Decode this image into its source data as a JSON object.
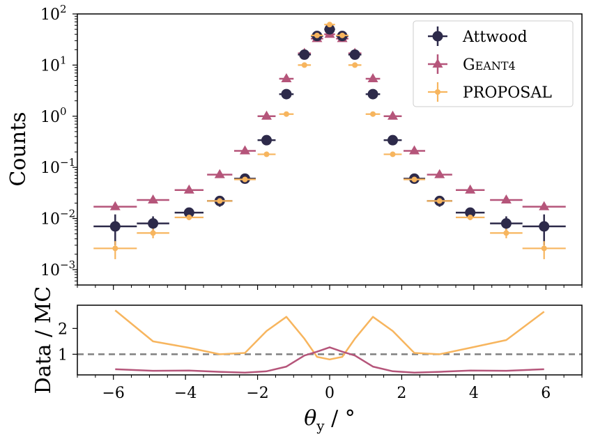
{
  "chart_data": [
    {
      "type": "scatter",
      "panel": "main",
      "ylabel": "Counts",
      "yscale": "log",
      "xlim": [
        -7,
        7
      ],
      "ylim": [
        0.0005,
        100
      ],
      "y_ticks": [
        {
          "value": 0.001,
          "base": "10",
          "exp": "−3"
        },
        {
          "value": 0.01,
          "base": "10",
          "exp": "−2"
        },
        {
          "value": 0.1,
          "base": "10",
          "exp": "−1"
        },
        {
          "value": 1,
          "base": "10",
          "exp": "0"
        },
        {
          "value": 10,
          "base": "10",
          "exp": "1"
        },
        {
          "value": 100,
          "base": "10",
          "exp": "2"
        }
      ],
      "legend_position": "top-right",
      "series": [
        {
          "name": "Attwood",
          "color": "#2d2a4a",
          "marker": "circle",
          "x": [
            -5.95,
            -4.9,
            -3.9,
            -3.05,
            -2.35,
            -1.75,
            -1.2,
            -0.7,
            -0.35,
            0,
            0.35,
            0.7,
            1.2,
            1.75,
            2.35,
            3.05,
            3.9,
            4.9,
            5.95
          ],
          "xerr": [
            0.6,
            0.45,
            0.4,
            0.35,
            0.3,
            0.25,
            0.2,
            0.18,
            0.17,
            0.15,
            0.17,
            0.18,
            0.2,
            0.25,
            0.3,
            0.35,
            0.4,
            0.45,
            0.6
          ],
          "y": [
            0.007,
            0.008,
            0.013,
            0.022,
            0.06,
            0.34,
            2.7,
            16,
            37,
            50,
            37,
            16,
            2.7,
            0.34,
            0.06,
            0.022,
            0.013,
            0.008,
            0.007
          ],
          "ylo": [
            0.003,
            0.005,
            0.011,
            0.017,
            0.055,
            0.32,
            2.6,
            15,
            35,
            43,
            35,
            15,
            2.6,
            0.32,
            0.055,
            0.017,
            0.011,
            0.005,
            0.003
          ],
          "yhi": [
            0.012,
            0.011,
            0.015,
            0.027,
            0.066,
            0.36,
            2.8,
            17,
            39,
            58,
            39,
            17,
            2.8,
            0.36,
            0.066,
            0.027,
            0.015,
            0.011,
            0.012
          ]
        },
        {
          "name": "Geant4",
          "color": "#b5557a",
          "marker": "triangle",
          "x": [
            -5.95,
            -4.9,
            -3.9,
            -3.05,
            -2.35,
            -1.75,
            -1.2,
            -0.7,
            -0.35,
            0,
            0.35,
            0.7,
            1.2,
            1.75,
            2.35,
            3.05,
            3.9,
            4.9,
            5.95
          ],
          "xerr": [
            0.6,
            0.45,
            0.4,
            0.35,
            0.3,
            0.25,
            0.2,
            0.18,
            0.17,
            0.15,
            0.17,
            0.18,
            0.2,
            0.25,
            0.3,
            0.35,
            0.4,
            0.45,
            0.6
          ],
          "y": [
            0.017,
            0.023,
            0.036,
            0.072,
            0.21,
            1.0,
            5.4,
            17,
            33,
            40,
            33,
            17,
            5.4,
            1.0,
            0.21,
            0.072,
            0.036,
            0.023,
            0.017
          ]
        },
        {
          "name": "PROPOSAL",
          "color": "#f7b55e",
          "marker": "small-circle",
          "x": [
            -5.95,
            -4.9,
            -3.9,
            -3.05,
            -2.35,
            -1.75,
            -1.2,
            -0.7,
            -0.35,
            0,
            0.35,
            0.7,
            1.2,
            1.75,
            2.35,
            3.05,
            3.9,
            4.9,
            5.95
          ],
          "xerr": [
            0.6,
            0.45,
            0.4,
            0.35,
            0.3,
            0.25,
            0.2,
            0.18,
            0.17,
            0.15,
            0.17,
            0.18,
            0.2,
            0.25,
            0.3,
            0.35,
            0.4,
            0.45,
            0.6
          ],
          "y": [
            0.0026,
            0.0052,
            0.0105,
            0.022,
            0.058,
            0.18,
            1.1,
            10,
            38,
            62,
            38,
            10,
            1.1,
            0.18,
            0.058,
            0.022,
            0.0105,
            0.0052,
            0.0026
          ],
          "ylo": [
            0.0016,
            0.0041,
            0.0093,
            0.02,
            0.055,
            0.175,
            1.07,
            9.8,
            37,
            60,
            37,
            9.8,
            1.07,
            0.175,
            0.055,
            0.02,
            0.0093,
            0.0041,
            0.0016
          ],
          "yhi": [
            0.0036,
            0.0063,
            0.0117,
            0.024,
            0.061,
            0.185,
            1.13,
            10.2,
            39,
            64,
            39,
            10.2,
            1.13,
            0.185,
            0.061,
            0.024,
            0.0117,
            0.0063,
            0.0036
          ]
        }
      ]
    },
    {
      "type": "line",
      "panel": "ratio",
      "ylabel": "Data / MC",
      "xlabel_symbol": "θ",
      "xlabel_sub": "y",
      "xlabel_unit": " / °",
      "xlim": [
        -7,
        7
      ],
      "ylim": [
        0.2,
        2.9
      ],
      "x_ticks": [
        "−6",
        "−4",
        "−2",
        "0",
        "2",
        "4",
        "6"
      ],
      "x_tick_values": [
        -6,
        -4,
        -2,
        0,
        2,
        4,
        6
      ],
      "y_ticks": [
        "1",
        "2"
      ],
      "y_tick_values": [
        1,
        2
      ],
      "reference_line": 1,
      "series": [
        {
          "color": "#f7b55e",
          "x": [
            -5.95,
            -4.9,
            -3.9,
            -3.05,
            -2.35,
            -1.75,
            -1.2,
            -0.7,
            -0.35,
            0,
            0.35,
            0.7,
            1.2,
            1.75,
            2.35,
            3.05,
            3.9,
            4.9,
            5.95
          ],
          "y": [
            2.7,
            1.5,
            1.25,
            1.0,
            1.05,
            1.9,
            2.45,
            1.6,
            0.9,
            0.8,
            0.9,
            1.6,
            2.45,
            1.9,
            1.05,
            1.0,
            1.25,
            1.55,
            2.65
          ]
        },
        {
          "color": "#b5557a",
          "x": [
            -5.95,
            -4.9,
            -3.9,
            -3.05,
            -2.35,
            -1.75,
            -1.2,
            -0.7,
            -0.35,
            0,
            0.35,
            0.7,
            1.2,
            1.75,
            2.35,
            3.05,
            3.9,
            4.9,
            5.95
          ],
          "y": [
            0.42,
            0.36,
            0.37,
            0.32,
            0.29,
            0.34,
            0.52,
            0.95,
            1.1,
            1.27,
            1.1,
            0.95,
            0.52,
            0.34,
            0.29,
            0.32,
            0.37,
            0.36,
            0.42
          ]
        }
      ]
    }
  ]
}
